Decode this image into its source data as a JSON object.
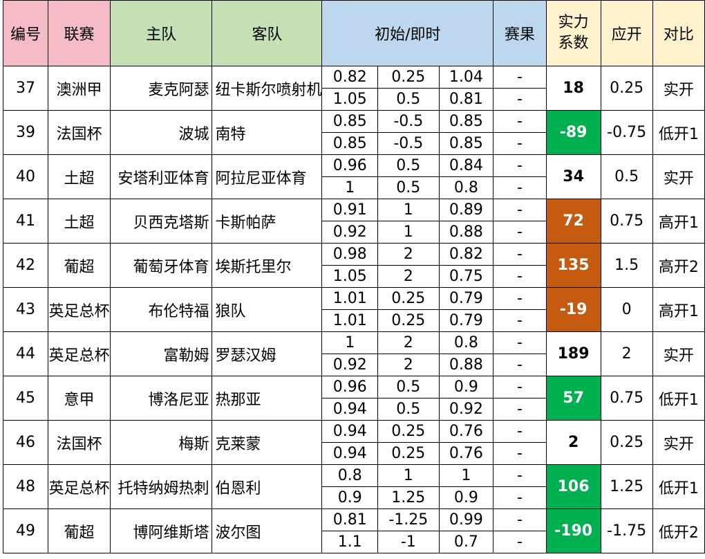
{
  "headers": {
    "id": "编号",
    "league": "联赛",
    "home": "主队",
    "away": "客队",
    "odds": "初始/即时",
    "result": "赛果",
    "strength_1": "实力",
    "strength_2": "系数",
    "expected": "应开",
    "compare": "对比"
  },
  "colors": {
    "green": "#00b050",
    "orange": "#c55a11"
  },
  "rows": [
    {
      "id": "37",
      "league": "澳洲甲",
      "home": "麦克阿瑟",
      "away": "纽卡斯尔喷射机",
      "odds": [
        [
          "0.82",
          "0.25",
          "1.04"
        ],
        [
          "1.05",
          "0.5",
          "0.81"
        ]
      ],
      "result": [
        "-",
        "-"
      ],
      "strength": "18",
      "highlight": "",
      "expected": "0.25",
      "compare": "实开"
    },
    {
      "id": "39",
      "league": "法国杯",
      "home": "波城",
      "away": "南特",
      "odds": [
        [
          "0.85",
          "-0.5",
          "0.85"
        ],
        [
          "0.85",
          "-0.5",
          "0.85"
        ]
      ],
      "result": [
        "-",
        "-"
      ],
      "strength": "-89",
      "highlight": "green",
      "expected": "-0.75",
      "compare": "低开1"
    },
    {
      "id": "40",
      "league": "土超",
      "home": "安塔利亚体育",
      "away": "阿拉尼亚体育",
      "odds": [
        [
          "0.96",
          "0.5",
          "0.84"
        ],
        [
          "1",
          "0.5",
          "0.8"
        ]
      ],
      "result": [
        "-",
        "-"
      ],
      "strength": "34",
      "highlight": "",
      "expected": "0.5",
      "compare": "实开"
    },
    {
      "id": "41",
      "league": "土超",
      "home": "贝西克塔斯",
      "away": "卡斯帕萨",
      "odds": [
        [
          "0.91",
          "1",
          "0.89"
        ],
        [
          "0.92",
          "1",
          "0.88"
        ]
      ],
      "result": [
        "-",
        "-"
      ],
      "strength": "72",
      "highlight": "orange",
      "expected": "0.75",
      "compare": "高开1"
    },
    {
      "id": "42",
      "league": "葡超",
      "home": "葡萄牙体育",
      "away": "埃斯托里尔",
      "odds": [
        [
          "0.98",
          "2",
          "0.82"
        ],
        [
          "1.05",
          "2",
          "0.75"
        ]
      ],
      "result": [
        "-",
        "-"
      ],
      "strength": "135",
      "highlight": "orange",
      "expected": "1.5",
      "compare": "高开2"
    },
    {
      "id": "43",
      "league": "英足总杯",
      "home": "布伦特福",
      "away": "狼队",
      "odds": [
        [
          "1.01",
          "0.25",
          "0.79"
        ],
        [
          "1.01",
          "0.25",
          "0.79"
        ]
      ],
      "result": [
        "-",
        "-"
      ],
      "strength": "-19",
      "highlight": "orange",
      "expected": "0",
      "compare": "高开1"
    },
    {
      "id": "44",
      "league": "英足总杯",
      "home": "富勒姆",
      "away": "罗瑟汉姆",
      "odds": [
        [
          "1",
          "2",
          "0.8"
        ],
        [
          "0.92",
          "2",
          "0.88"
        ]
      ],
      "result": [
        "-",
        "-"
      ],
      "strength": "189",
      "highlight": "",
      "expected": "2",
      "compare": "实开"
    },
    {
      "id": "45",
      "league": "意甲",
      "home": "博洛尼亚",
      "away": "热那亚",
      "odds": [
        [
          "0.96",
          "0.5",
          "0.9"
        ],
        [
          "0.94",
          "0.5",
          "0.92"
        ]
      ],
      "result": [
        "-",
        "-"
      ],
      "strength": "57",
      "highlight": "green",
      "expected": "0.75",
      "compare": "低开1"
    },
    {
      "id": "46",
      "league": "法国杯",
      "home": "梅斯",
      "away": "克莱蒙",
      "odds": [
        [
          "0.94",
          "0.25",
          "0.76"
        ],
        [
          "0.94",
          "0.25",
          "0.76"
        ]
      ],
      "result": [
        "-",
        "-"
      ],
      "strength": "2",
      "highlight": "",
      "expected": "0.25",
      "compare": "实开"
    },
    {
      "id": "48",
      "league": "英足总杯",
      "home": "托特纳姆热刺",
      "away": "伯恩利",
      "odds": [
        [
          "0.8",
          "1",
          "1"
        ],
        [
          "0.9",
          "1.25",
          "0.9"
        ]
      ],
      "result": [
        "-",
        "-"
      ],
      "strength": "106",
      "highlight": "green",
      "expected": "1.25",
      "compare": "低开1"
    },
    {
      "id": "49",
      "league": "葡超",
      "home": "博阿维斯塔",
      "away": "波尔图",
      "odds": [
        [
          "0.81",
          "-1.25",
          "0.99"
        ],
        [
          "1.1",
          "-1",
          "0.7"
        ]
      ],
      "result": [
        "-",
        "-"
      ],
      "strength": "-190",
      "highlight": "green",
      "expected": "-1.75",
      "compare": "低开2"
    }
  ]
}
